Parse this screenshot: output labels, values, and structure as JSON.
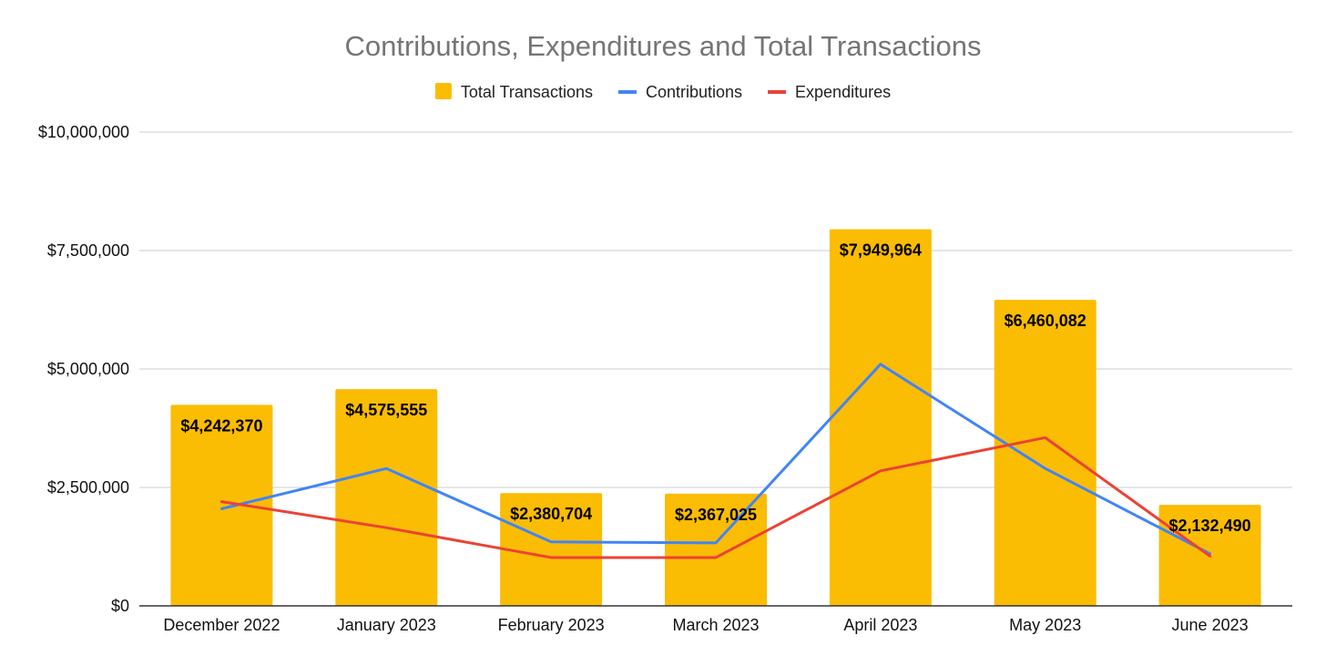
{
  "chart_data": {
    "type": "bar",
    "title": "Contributions, Expenditures and Total Transactions",
    "xlabel": "",
    "ylabel": "",
    "ylim": [
      0,
      10000000
    ],
    "yticks": [
      0,
      2500000,
      5000000,
      7500000,
      10000000
    ],
    "ytick_labels": [
      "$0",
      "$2,500,000",
      "$5,000,000",
      "$7,500,000",
      "$10,000,000"
    ],
    "categories": [
      "December 2022",
      "January 2023",
      "February 2023",
      "March 2023",
      "April 2023",
      "May 2023",
      "June 2023"
    ],
    "grid": true,
    "legend_position": "top",
    "series": [
      {
        "name": "Total Transactions",
        "type": "bar",
        "color": "#FBBC04",
        "values": [
          4242370,
          4575555,
          2380704,
          2367025,
          7949964,
          6460082,
          2132490
        ],
        "labels": [
          "$4,242,370",
          "$4,575,555",
          "$2,380,704",
          "$2,367,025",
          "$7,949,964",
          "$6,460,082",
          "$2,132,490"
        ]
      },
      {
        "name": "Contributions",
        "type": "line",
        "color": "#4285F4",
        "values": [
          2050000,
          2900000,
          1350000,
          1330000,
          5100000,
          2900000,
          1100000
        ]
      },
      {
        "name": "Expenditures",
        "type": "line",
        "color": "#EA4335",
        "values": [
          2200000,
          1650000,
          1020000,
          1020000,
          2850000,
          3550000,
          1050000
        ]
      }
    ]
  }
}
